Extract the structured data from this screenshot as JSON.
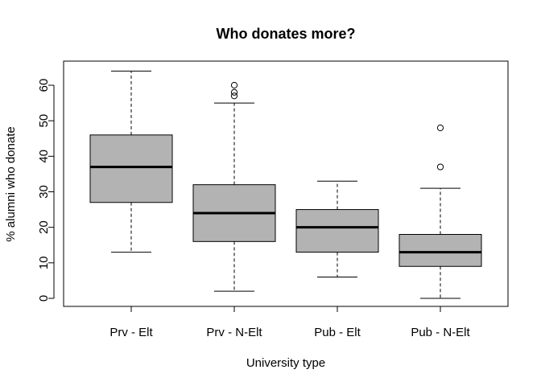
{
  "chart_data": {
    "type": "boxplot",
    "title": "Who donates more?",
    "xlabel": "University type",
    "ylabel": "% alumni who donate",
    "ylim": [
      -2,
      66
    ],
    "yticks": [
      0,
      10,
      20,
      30,
      40,
      50,
      60
    ],
    "categories": [
      "Prv - Elt",
      "Prv - N-Elt",
      "Pub - Elt",
      "Pub - N-Elt"
    ],
    "boxes": [
      {
        "category": "Prv - Elt",
        "whisker_low": 13,
        "q1": 27,
        "median": 37,
        "q3": 46,
        "whisker_high": 64,
        "outliers": []
      },
      {
        "category": "Prv - N-Elt",
        "whisker_low": 2,
        "q1": 16,
        "median": 24,
        "q3": 32,
        "whisker_high": 55,
        "outliers": [
          57,
          58,
          60
        ]
      },
      {
        "category": "Pub - Elt",
        "whisker_low": 6,
        "q1": 13,
        "median": 20,
        "q3": 25,
        "whisker_high": 33,
        "outliers": []
      },
      {
        "category": "Pub - N-Elt",
        "whisker_low": 0,
        "q1": 9,
        "median": 13,
        "q3": 18,
        "whisker_high": 31,
        "outliers": [
          37,
          48
        ]
      }
    ],
    "box_fill": "#b3b3b3",
    "line_color": "#000000",
    "grid": false,
    "legend": "none"
  }
}
